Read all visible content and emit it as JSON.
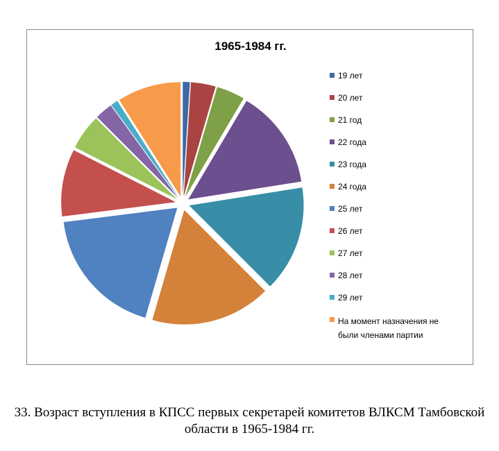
{
  "chart_data": {
    "type": "pie",
    "title": "1965-1984 гг.",
    "categories": [
      "19 лет",
      "20 лет",
      "21 год",
      "22 года",
      "23 года",
      "24 года",
      "25 лет",
      "26 лет",
      "27 лет",
      "28 лет",
      "29 лет",
      "На момент назначения не были членами партии"
    ],
    "values": [
      1,
      3.5,
      4,
      14,
      15,
      17,
      18.5,
      9.5,
      5,
      2.5,
      1,
      9
    ],
    "colors": [
      "#3d68a6",
      "#a94442",
      "#7ea046",
      "#6b4f8e",
      "#388ea6",
      "#d4813a",
      "#5081c0",
      "#c4504e",
      "#9bc35a",
      "#8465a6",
      "#4aacc6",
      "#f79a4a"
    ],
    "legend": "right"
  },
  "caption": "33. Возраст вступления в КПСС первых секретарей комитетов ВЛКСМ Тамбовской области в 1965-1984 гг."
}
